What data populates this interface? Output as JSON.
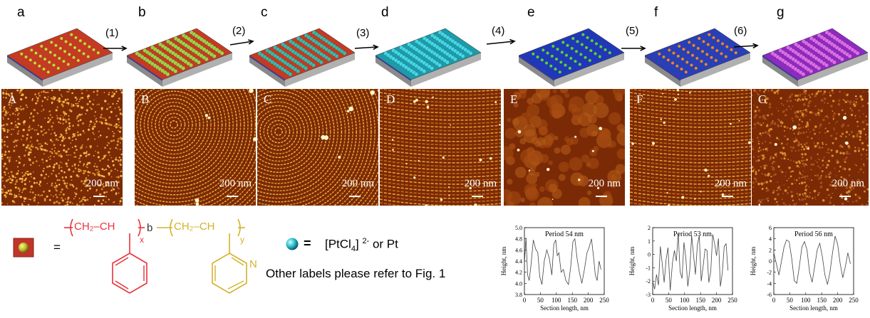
{
  "schematics": [
    {
      "letter": "a",
      "surface": "#c53a22",
      "dots": "#c8d83a",
      "dot_style": "small"
    },
    {
      "letter": "b",
      "surface": "#c53a22",
      "dots": "#9ed24a",
      "dot_style": "rows"
    },
    {
      "letter": "c",
      "surface": "#c53a22",
      "dots": "#3fb8a8",
      "dot_style": "rows"
    },
    {
      "letter": "d",
      "surface": "#1e9aa8",
      "dots": "#45d8e8",
      "dot_style": "rows"
    },
    {
      "letter": "e",
      "surface": "#2038b8",
      "dots": "#5ad048",
      "dot_style": "small"
    },
    {
      "letter": "f",
      "surface": "#2a3fb5",
      "dots": "#e08a3a",
      "dot_style": "small"
    },
    {
      "letter": "g",
      "surface": "#8b2bc0",
      "dots": "#e06ce8",
      "dot_style": "rows"
    }
  ],
  "steps": [
    "(1)",
    "(2)",
    "(3)",
    "(4)",
    "(5)",
    "(6)"
  ],
  "afm_images": [
    {
      "label": "A",
      "scale": "200 nm",
      "pattern": "dots"
    },
    {
      "label": "B",
      "scale": "200 nm",
      "pattern": "fingerprint"
    },
    {
      "label": "C",
      "scale": "200 nm",
      "pattern": "fingerprint"
    },
    {
      "label": "D",
      "scale": "200 nm",
      "pattern": "stripes"
    },
    {
      "label": "E",
      "scale": "200 nm",
      "pattern": "flat"
    },
    {
      "label": "F",
      "scale": "200 nm",
      "pattern": "stripes"
    },
    {
      "label": "G",
      "scale": "200 nm",
      "pattern": "grain"
    }
  ],
  "legend": {
    "equals": "=",
    "pt_text": "[PtCl",
    "pt_sub": "4",
    "pt_sup": "2-",
    "pt_rest": "or Pt",
    "other_labels": "Other labels please refer to Fig. 1",
    "ps_colour": "#e8323a",
    "p2vp_colour": "#d4b22a"
  },
  "polymer": {
    "ps_repeat": "CH₂–CH",
    "subscript_x": "x",
    "block": "b",
    "p2vp_repeat": "CH₂–CH",
    "subscript_y": "y",
    "pyridine_n": "N"
  },
  "chart_data": [
    {
      "type": "line",
      "title": "Period 54 nm",
      "xlabel": "Section length, nm",
      "ylabel": "Height, nm",
      "xlim": [
        0,
        250
      ],
      "ylim": [
        3.8,
        5.0
      ],
      "xticks": [
        "0",
        "50",
        "100",
        "150",
        "200",
        "250"
      ],
      "yticks": [
        "3.8",
        "4.0",
        "4.2",
        "4.4",
        "4.6",
        "4.8",
        "5.0"
      ],
      "x": [
        0,
        5,
        10,
        15,
        20,
        28,
        35,
        42,
        48,
        55,
        62,
        70,
        78,
        86,
        92,
        98,
        103,
        108,
        115,
        122,
        130,
        138,
        145,
        152,
        158,
        165,
        172,
        180,
        188,
        196,
        203,
        210,
        216,
        222,
        228,
        234,
        240
      ],
      "y": [
        4.35,
        4.82,
        4.15,
        4.05,
        4.3,
        4.78,
        4.62,
        4.55,
        4.12,
        3.98,
        4.4,
        4.6,
        4.45,
        4.15,
        4.7,
        4.78,
        4.5,
        4.55,
        4.2,
        4.25,
        4.05,
        3.98,
        4.3,
        4.75,
        4.8,
        4.45,
        4.2,
        4.0,
        4.25,
        4.55,
        4.65,
        4.8,
        4.5,
        4.15,
        4.05,
        4.4,
        4.25
      ]
    },
    {
      "type": "line",
      "title": "Period 53 nm",
      "xlabel": "Section length, nm",
      "ylabel": "Height, nm",
      "xlim": [
        0,
        250
      ],
      "ylim": [
        -3,
        2
      ],
      "xticks": [
        "0",
        "50",
        "100",
        "150",
        "200",
        "250"
      ],
      "yticks": [
        "-3",
        "-2",
        "-1",
        "0",
        "1",
        "2"
      ],
      "x": [
        0,
        6,
        12,
        18,
        24,
        30,
        36,
        42,
        48,
        55,
        62,
        68,
        74,
        80,
        86,
        92,
        98,
        104,
        110,
        116,
        122,
        128,
        134,
        140,
        146,
        152,
        158,
        164,
        170,
        176,
        182,
        188,
        194,
        200,
        206,
        212,
        218,
        224,
        230,
        236
      ],
      "y": [
        -2.0,
        -2.6,
        -1.5,
        -2.3,
        0.6,
        -0.7,
        -2.1,
        -0.4,
        0.5,
        -2.7,
        -0.6,
        0.3,
        -0.5,
        1.6,
        -1.3,
        -1.8,
        0.9,
        -0.3,
        -2.4,
        -1.2,
        1.4,
        0.0,
        -1.5,
        0.7,
        1.4,
        -2.0,
        -0.9,
        0.4,
        0.3,
        -2.1,
        -1.3,
        1.5,
        0.8,
        -0.1,
        1.2,
        -2.4,
        -1.4,
        0.6,
        0.8,
        -1.2
      ]
    },
    {
      "type": "line",
      "title": "Period 56 nm",
      "xlabel": "Section length, nm",
      "ylabel": "Height, nm",
      "xlim": [
        0,
        250
      ],
      "ylim": [
        -6,
        6
      ],
      "xticks": [
        "0",
        "50",
        "100",
        "150",
        "200",
        "250"
      ],
      "yticks": [
        "-6",
        "-4",
        "-2",
        "0",
        "2",
        "4",
        "6"
      ],
      "x": [
        0,
        8,
        16,
        24,
        32,
        40,
        48,
        56,
        64,
        72,
        80,
        88,
        96,
        104,
        112,
        120,
        128,
        136,
        144,
        152,
        160,
        168,
        176,
        184,
        192,
        200,
        208,
        216,
        224,
        232,
        240
      ],
      "y": [
        1.5,
        -0.5,
        -2.5,
        0.0,
        2.5,
        3.8,
        3.5,
        0.5,
        -3.5,
        -4.0,
        -1.0,
        2.5,
        3.5,
        2.0,
        -2.0,
        -3.8,
        -1.0,
        2.0,
        3.2,
        0.8,
        -2.5,
        -4.2,
        -2.0,
        1.5,
        4.5,
        3.0,
        -0.5,
        -3.0,
        -1.0,
        1.5,
        -0.5
      ]
    }
  ]
}
